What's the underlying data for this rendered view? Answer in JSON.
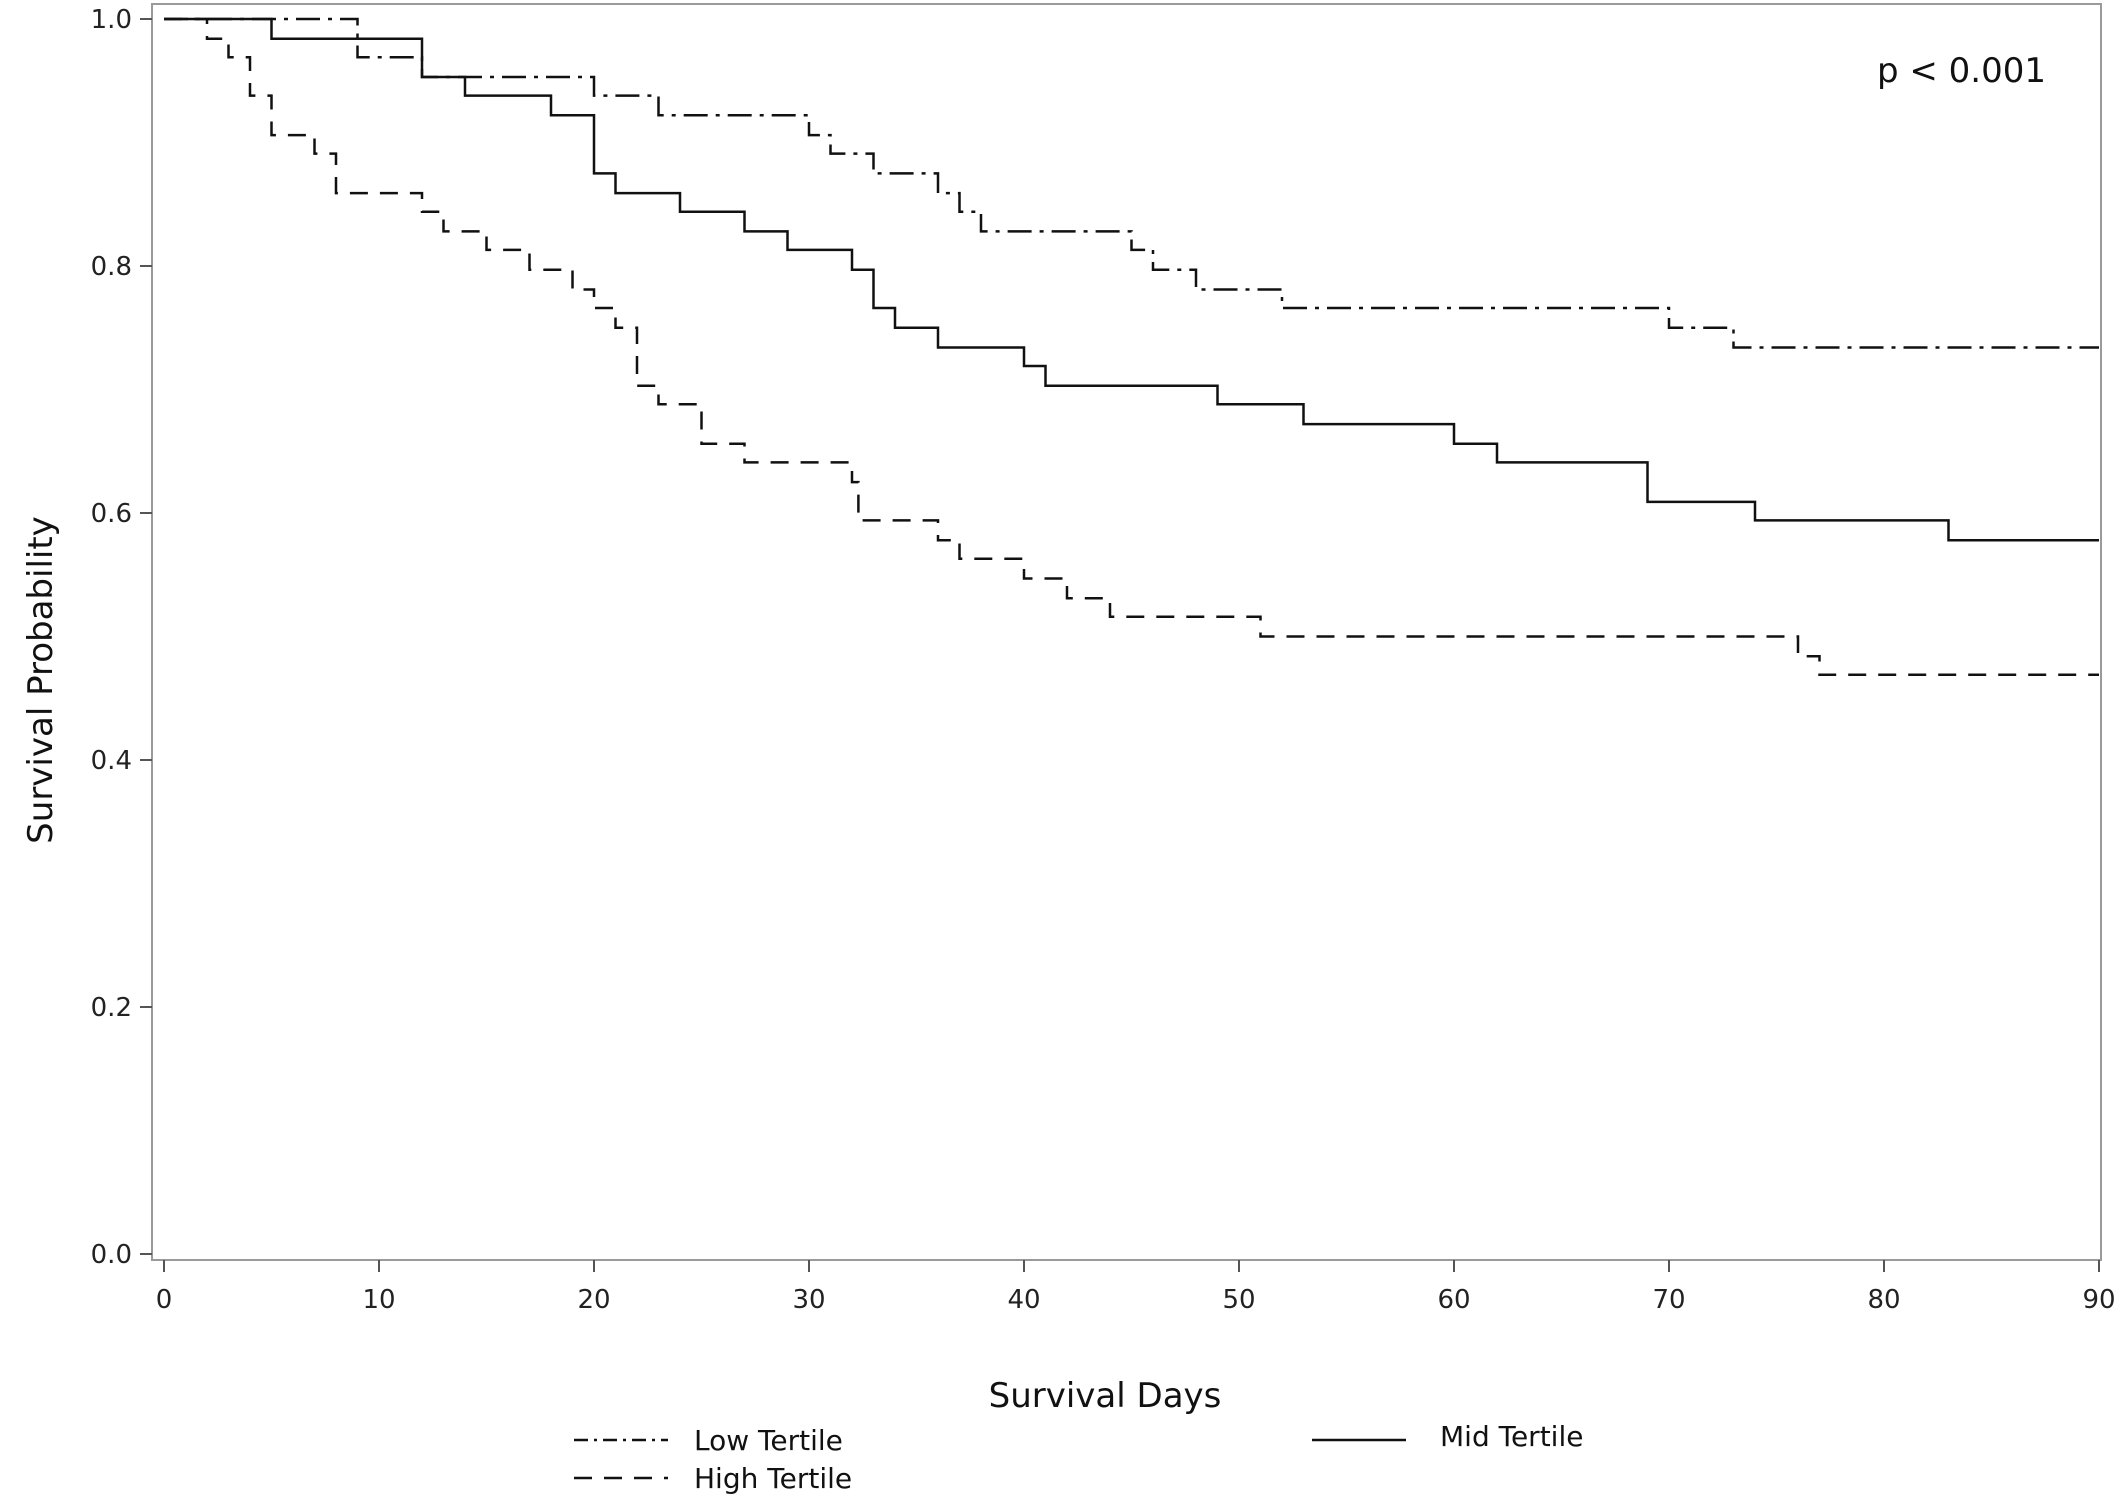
{
  "chart_data": {
    "type": "line",
    "subtype": "kaplan-meier step",
    "xlabel": "Survival Days",
    "ylabel": "Survival Probability",
    "xlim": [
      0,
      90
    ],
    "ylim": [
      0.0,
      1.0
    ],
    "xticks": [
      "0",
      "10",
      "20",
      "30",
      "40",
      "50",
      "60",
      "70",
      "80",
      "90"
    ],
    "yticks": [
      "0.0",
      "0.2",
      "0.4",
      "0.6",
      "0.8",
      "1.0"
    ],
    "grid": false,
    "annotation": "p < 0.001",
    "legend_position": "bottom",
    "series": [
      {
        "name": "Low Tertile",
        "dash": "dash-dot",
        "points": [
          [
            0,
            1.0
          ],
          [
            9,
            1.0
          ],
          [
            9,
            0.969
          ],
          [
            12,
            0.969
          ],
          [
            12,
            0.953
          ],
          [
            20,
            0.953
          ],
          [
            20,
            0.938
          ],
          [
            23,
            0.938
          ],
          [
            23,
            0.922
          ],
          [
            30,
            0.922
          ],
          [
            30,
            0.906
          ],
          [
            31,
            0.906
          ],
          [
            31,
            0.891
          ],
          [
            33,
            0.891
          ],
          [
            33,
            0.875
          ],
          [
            36,
            0.875
          ],
          [
            36,
            0.859
          ],
          [
            37,
            0.859
          ],
          [
            37,
            0.844
          ],
          [
            38,
            0.844
          ],
          [
            38,
            0.828
          ],
          [
            45,
            0.828
          ],
          [
            45,
            0.813
          ],
          [
            46,
            0.813
          ],
          [
            46,
            0.797
          ],
          [
            48,
            0.797
          ],
          [
            48,
            0.781
          ],
          [
            52,
            0.781
          ],
          [
            52,
            0.766
          ],
          [
            70,
            0.766
          ],
          [
            70,
            0.75
          ],
          [
            73,
            0.75
          ],
          [
            73,
            0.734
          ],
          [
            90,
            0.734
          ]
        ]
      },
      {
        "name": "Mid Tertile",
        "dash": "solid",
        "points": [
          [
            0,
            1.0
          ],
          [
            5,
            1.0
          ],
          [
            5,
            0.984
          ],
          [
            9,
            0.984
          ],
          [
            12,
            0.984
          ],
          [
            12,
            0.953
          ],
          [
            14,
            0.953
          ],
          [
            14,
            0.938
          ],
          [
            18,
            0.938
          ],
          [
            18,
            0.922
          ],
          [
            20,
            0.922
          ],
          [
            20,
            0.875
          ],
          [
            21,
            0.875
          ],
          [
            21,
            0.859
          ],
          [
            24,
            0.859
          ],
          [
            24,
            0.844
          ],
          [
            27,
            0.844
          ],
          [
            27,
            0.828
          ],
          [
            29,
            0.828
          ],
          [
            29,
            0.813
          ],
          [
            32,
            0.813
          ],
          [
            32,
            0.797
          ],
          [
            33,
            0.797
          ],
          [
            33,
            0.766
          ],
          [
            34,
            0.766
          ],
          [
            34,
            0.75
          ],
          [
            36,
            0.75
          ],
          [
            36,
            0.734
          ],
          [
            40,
            0.734
          ],
          [
            40,
            0.719
          ],
          [
            41,
            0.719
          ],
          [
            41,
            0.703
          ],
          [
            49,
            0.703
          ],
          [
            49,
            0.688
          ],
          [
            53,
            0.688
          ],
          [
            53,
            0.672
          ],
          [
            60,
            0.672
          ],
          [
            60,
            0.656
          ],
          [
            62,
            0.656
          ],
          [
            62,
            0.641
          ],
          [
            69,
            0.641
          ],
          [
            69,
            0.609
          ],
          [
            74,
            0.609
          ],
          [
            74,
            0.594
          ],
          [
            83,
            0.594
          ],
          [
            83,
            0.578
          ],
          [
            90,
            0.578
          ]
        ]
      },
      {
        "name": "High Tertile",
        "dash": "dashed",
        "points": [
          [
            0,
            1.0
          ],
          [
            2,
            1.0
          ],
          [
            2,
            0.984
          ],
          [
            3,
            0.984
          ],
          [
            3,
            0.969
          ],
          [
            4,
            0.969
          ],
          [
            4,
            0.938
          ],
          [
            5,
            0.938
          ],
          [
            5,
            0.906
          ],
          [
            7,
            0.906
          ],
          [
            7,
            0.891
          ],
          [
            8,
            0.891
          ],
          [
            8,
            0.859
          ],
          [
            12,
            0.859
          ],
          [
            12,
            0.844
          ],
          [
            13,
            0.844
          ],
          [
            13,
            0.828
          ],
          [
            15,
            0.828
          ],
          [
            15,
            0.813
          ],
          [
            17,
            0.813
          ],
          [
            17,
            0.797
          ],
          [
            19,
            0.797
          ],
          [
            19,
            0.781
          ],
          [
            20,
            0.781
          ],
          [
            20,
            0.766
          ],
          [
            21,
            0.766
          ],
          [
            21,
            0.75
          ],
          [
            22,
            0.75
          ],
          [
            22,
            0.703
          ],
          [
            23,
            0.703
          ],
          [
            23,
            0.688
          ],
          [
            25,
            0.688
          ],
          [
            25,
            0.656
          ],
          [
            27,
            0.656
          ],
          [
            27,
            0.641
          ],
          [
            32,
            0.641
          ],
          [
            32,
            0.625
          ],
          [
            32.3,
            0.625
          ],
          [
            32.3,
            0.594
          ],
          [
            36,
            0.594
          ],
          [
            36,
            0.578
          ],
          [
            37,
            0.578
          ],
          [
            37,
            0.563
          ],
          [
            40,
            0.563
          ],
          [
            40,
            0.547
          ],
          [
            42,
            0.547
          ],
          [
            42,
            0.531
          ],
          [
            44,
            0.531
          ],
          [
            44,
            0.516
          ],
          [
            51,
            0.516
          ],
          [
            51,
            0.5
          ],
          [
            76,
            0.5
          ],
          [
            76,
            0.484
          ],
          [
            77,
            0.484
          ],
          [
            77,
            0.469
          ],
          [
            90,
            0.469
          ]
        ]
      }
    ]
  }
}
